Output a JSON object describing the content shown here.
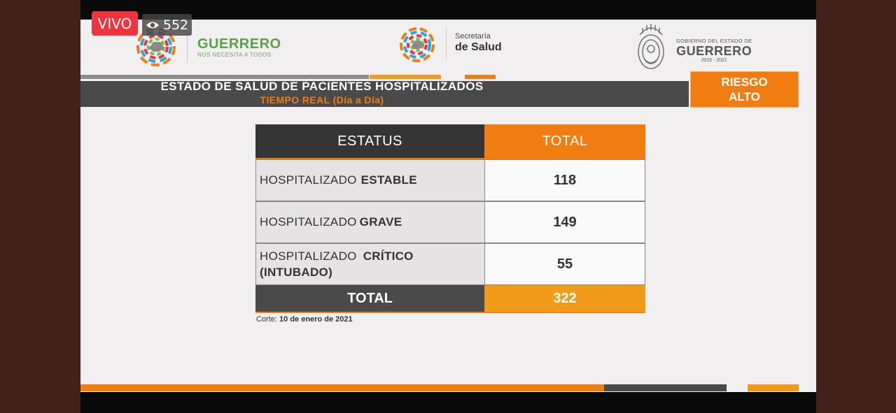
{
  "stream": {
    "live_label": "VIVO",
    "viewers": "552"
  },
  "logos": {
    "guerrero_name": "GUERRERO",
    "guerrero_slogan": "NOS NECESITA A TODOS",
    "salud_line1": "Secretaría",
    "salud_line2": "de Salud",
    "gob_line1": "GOBIERNO DEL ESTADO DE",
    "gob_line2": "GUERRERO",
    "gob_years": "2015 - 2021"
  },
  "header": {
    "title": "ESTADO DE SALUD DE PACIENTES HOSPITALIZADOS",
    "subtitle": "TIEMPO REAL (Día a Día)",
    "risk_line1": "RIESGO",
    "risk_line2": "ALTO"
  },
  "table": {
    "col_status": "ESTATUS",
    "col_total": "TOTAL",
    "rows": [
      {
        "prefix": "HOSPITALIZADO",
        "status": "ESTABLE",
        "total": "118"
      },
      {
        "prefix": "HOSPITALIZADO",
        "status": "GRAVE",
        "total": "149"
      },
      {
        "prefix": "HOSPITALIZADO",
        "status": "CRÍTICO",
        "status2": "(INTUBADO)",
        "total": "55"
      }
    ],
    "total_label": "TOTAL",
    "total_value": "322"
  },
  "footer": {
    "corte_label": "Corte:",
    "corte_date": "10 de enero de 2021"
  },
  "colors": {
    "orange": "#f07d12",
    "dark": "#353535",
    "green": "#57a244"
  }
}
